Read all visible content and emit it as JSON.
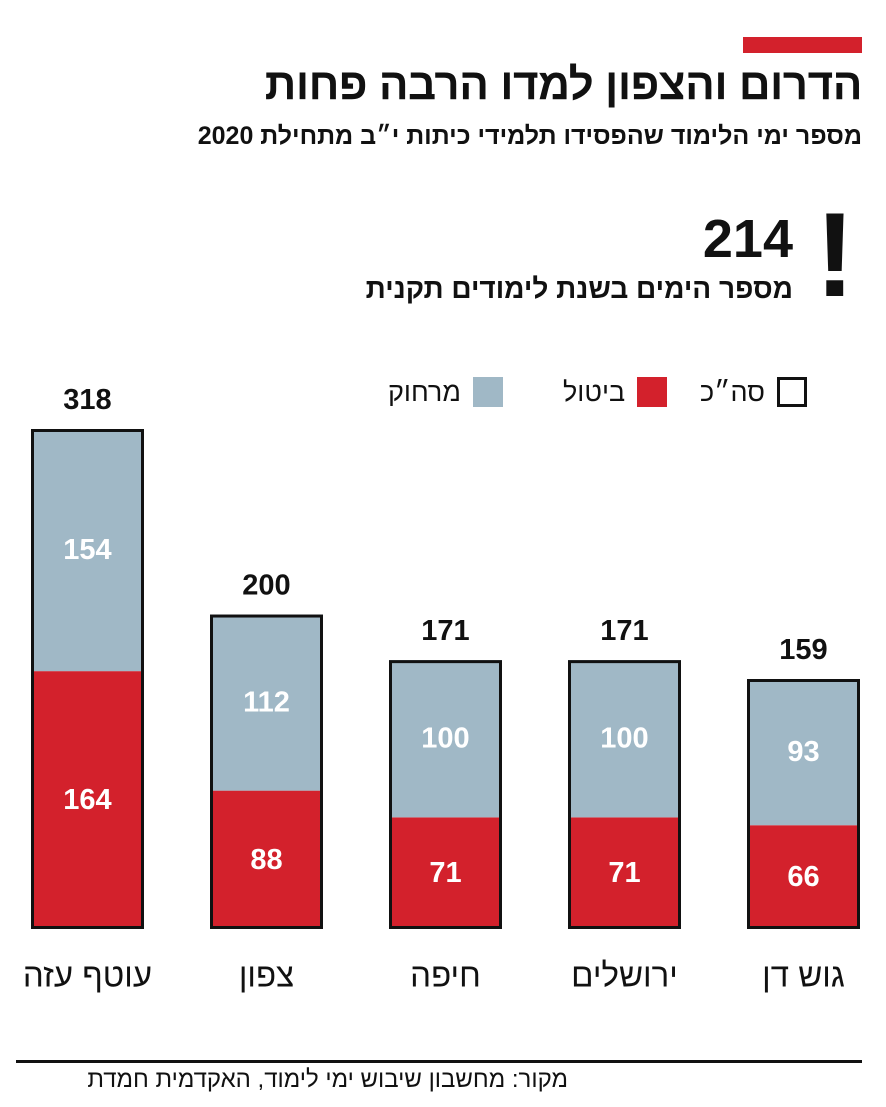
{
  "header": {
    "title": "הדרום והצפון למדו הרבה פחות",
    "subtitle": "מספר ימי הלימוד שהפסידו תלמידי כיתות י״ב מתחילת 2020"
  },
  "callout": {
    "value": "214",
    "text": "מספר הימים בשנת לימודים תקנית",
    "symbol": "!"
  },
  "legend": {
    "total": "סה״כ",
    "cancel": "ביטול",
    "remote": "מרחוק"
  },
  "colors": {
    "accent": "#d3212c",
    "cancel": "#d3212c",
    "remote": "#a0b8c6",
    "outline": "#111111"
  },
  "chart_data": {
    "type": "bar",
    "stacked": true,
    "categories": [
      "עוטף עזה",
      "צפון",
      "חיפה",
      "ירושלים",
      "גוש דן"
    ],
    "series": [
      {
        "name": "ביטול",
        "values": [
          164,
          88,
          71,
          71,
          66
        ]
      },
      {
        "name": "מרחוק",
        "values": [
          154,
          112,
          100,
          100,
          93
        ]
      }
    ],
    "totals": [
      318,
      200,
      171,
      171,
      159
    ],
    "ylim": [
      0,
      318
    ],
    "grid": false,
    "legend_position": "top-right"
  },
  "source": "מקור: מחשבון שיבוש ימי לימוד, האקדמית חמדת"
}
